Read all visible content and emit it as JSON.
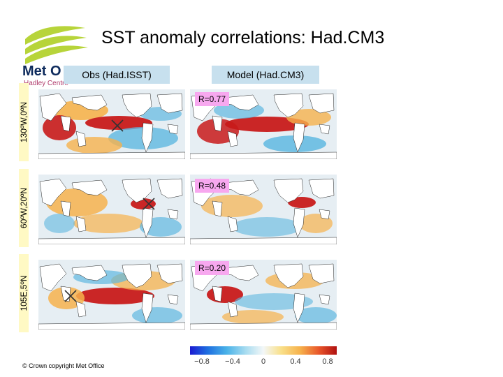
{
  "title": "SST anomaly correlations: Had.CM3",
  "logo": {
    "brand": "Met Office",
    "sub": "Hadley Centre"
  },
  "columns": {
    "obs": "Obs (Had.ISST)",
    "model": "Model (Had.CM3)"
  },
  "rows": [
    {
      "label": "130ºW,0ºN",
      "r": "R=0.77"
    },
    {
      "label": "60ºW,20ºN",
      "r": "R=0.48"
    },
    {
      "label": "105E,5ºN",
      "r": "R=0.20"
    }
  ],
  "colorbar": {
    "ticks": [
      "−0.8",
      "−0.4",
      "0",
      "0.4",
      "0.8"
    ]
  },
  "copyright": "© Crown copyright   Met Office",
  "colors": {
    "land": "#ffffff",
    "ocean_neutral": "#e6eef3",
    "warm": "#f6b24c",
    "hot": "#c81a1a",
    "cool": "#5fb8e0",
    "header_bg": "#c7e0ee",
    "label_bg": "#fff9c4",
    "r_badge_bg": "#f7a8ef"
  }
}
